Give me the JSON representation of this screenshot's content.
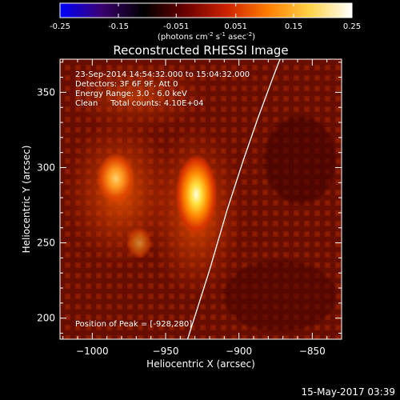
{
  "colorbar": {
    "tick_labels": [
      "-0.25",
      "-0.15",
      "-0.051",
      "0.051",
      "0.15",
      "0.25"
    ],
    "tick_values": [
      -0.25,
      -0.15,
      -0.051,
      0.051,
      0.15,
      0.25
    ],
    "range": [
      -0.25,
      0.25
    ],
    "units_parts": {
      "prefix": "(photons cm",
      "exp1": "-2",
      "mid1": " s",
      "exp2": "-1",
      "mid2": " asec",
      "exp3": "-2",
      "suffix": ")"
    },
    "gradient_colors": [
      "#0000ff",
      "#3a0070",
      "#000000",
      "#6a0000",
      "#cc2200",
      "#ff7f00",
      "#ffd24a",
      "#ffffff"
    ]
  },
  "title": "Reconstructed RHESSI Image",
  "info": {
    "line1": "23-Sep-2014 14:54:32.000 to 15:04:32.000",
    "line2": "Detectors: 3F 6F 9F, Att 0",
    "line3": "Energy Range: 3.0 - 6.0 keV",
    "line4": "Clean     Total counts: 4.10E+04"
  },
  "peak_text": "Position of Peak = [-928,280]",
  "footer_date": "15-May-2017 03:39",
  "chart_data": {
    "type": "heatmap",
    "xlabel": "Heliocentric X (arcsec)",
    "ylabel": "Heliocentric Y (arcsec)",
    "xlim": [
      -1022,
      -830
    ],
    "ylim": [
      186,
      372
    ],
    "xticks": [
      -1000,
      -950,
      -900,
      -850
    ],
    "yticks": [
      200,
      250,
      300,
      350
    ],
    "xtick_labels": [
      "−1000",
      "−950",
      "−900",
      "−850"
    ],
    "ytick_labels": [
      "200",
      "250",
      "300",
      "350"
    ],
    "peak_position": [
      -928,
      280
    ],
    "sources": [
      {
        "x": -928,
        "y": 280
      },
      {
        "x": -985,
        "y": 297
      }
    ],
    "limb_curve": [
      [
        -935,
        186
      ],
      [
        -920,
        232
      ],
      [
        -908,
        272
      ],
      [
        -897,
        305
      ],
      [
        -887,
        333
      ],
      [
        -876,
        362
      ],
      [
        -872,
        372
      ]
    ]
  },
  "colors": {
    "background": "#000000",
    "axis": "#ffffff",
    "limb": "#ffffff",
    "image_base": "#7a1400"
  }
}
